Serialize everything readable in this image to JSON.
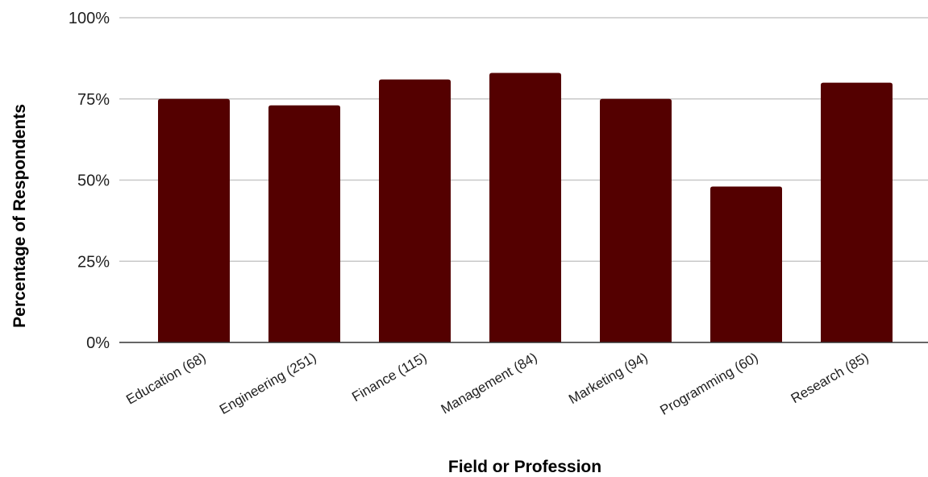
{
  "chart_data": {
    "type": "bar",
    "categories": [
      "Education (68)",
      "Engineering (251)",
      "Finance (115)",
      "Management (84)",
      "Marketing (94)",
      "Programming (60)",
      "Research (85)"
    ],
    "values": [
      75,
      73,
      81,
      83,
      75,
      48,
      80
    ],
    "value_format": "percent",
    "title": "",
    "xlabel": "Field or Profession",
    "ylabel": "Percentage of Respondents",
    "ylim": [
      0,
      100
    ],
    "yticks": [
      0,
      25,
      50,
      75,
      100
    ],
    "ytick_labels": [
      "0%",
      "25%",
      "50%",
      "75%",
      "100%"
    ],
    "grid": true,
    "legend": "none",
    "colors": {
      "bar": "#540000",
      "grid": "#c8c8c8",
      "axis": "#333333"
    }
  }
}
